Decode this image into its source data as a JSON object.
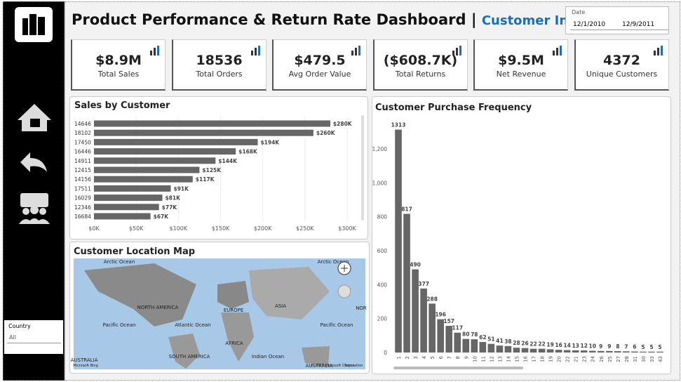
{
  "header": {
    "title": "Product Performance & Return Rate Dashboard",
    "separator": "|",
    "subtitle": "Customer Insights"
  },
  "date_slicer": {
    "label": "Date",
    "start": "12/1/2010",
    "end": "12/9/2011"
  },
  "kpis": [
    {
      "value": "$8.9M",
      "label": "Total Sales"
    },
    {
      "value": "18536",
      "label": "Total Orders"
    },
    {
      "value": "$479.5",
      "label": "Avg Order Value"
    },
    {
      "value": "($608.7K)",
      "label": "Total Returns"
    },
    {
      "value": "$9.5M",
      "label": "Net Revenue"
    },
    {
      "value": "4372",
      "label": "Unique Customers"
    }
  ],
  "country_slicer": {
    "label": "Country",
    "value": "All"
  },
  "map": {
    "title": "Customer Location Map",
    "labels": [
      "Arctic Ocean",
      "Arctic Ocean",
      "NORTH AMERICA",
      "EUROPE",
      "ASIA",
      "NOR",
      "Pacific Ocean",
      "Atlantic Ocean",
      "Pacific Ocean",
      "AFRICA",
      "SOUTH AMERICA",
      "Indian Ocean",
      "AUSTRALIA",
      "AUSTRALIA",
      "Microsoft Bing",
      "© 2025 Microsoft Corporation",
      "Terms"
    ]
  },
  "chart_data": [
    {
      "type": "hbar",
      "title": "Sales by Customer",
      "color": "#666666",
      "categories": [
        "14646",
        "18102",
        "17450",
        "16446",
        "14911",
        "12415",
        "14156",
        "17511",
        "16029",
        "12346",
        "16684"
      ],
      "values": [
        280000,
        260000,
        194000,
        168000,
        144000,
        125000,
        117000,
        91000,
        81000,
        77000,
        67000
      ],
      "value_labels": [
        "$280K",
        "$260K",
        "$194K",
        "$168K",
        "$144K",
        "$125K",
        "$117K",
        "$91K",
        "$81K",
        "$77K",
        "$67K"
      ],
      "xlim": [
        0,
        315000
      ],
      "xticks": [
        {
          "value": 0,
          "label": "$0K"
        },
        {
          "value": 50000,
          "label": "$50K"
        },
        {
          "value": 100000,
          "label": "$100K"
        },
        {
          "value": 150000,
          "label": "$150K"
        },
        {
          "value": 200000,
          "label": "$200K"
        },
        {
          "value": 250000,
          "label": "$250K"
        },
        {
          "value": 300000,
          "label": "$300K"
        }
      ],
      "grid": true
    },
    {
      "type": "bar",
      "title": "Customer Purchase Frequency",
      "color": "#666666",
      "categories": [
        "1",
        "2",
        "3",
        "4",
        "5",
        "6",
        "7",
        "8",
        "9",
        "10",
        "11",
        "12",
        "13",
        "14",
        "15",
        "16",
        "17",
        "18",
        "19",
        "20",
        "22",
        "21",
        "23",
        "24",
        "26",
        "25",
        "27",
        "28",
        "31",
        "30",
        "33",
        "43"
      ],
      "values": [
        1313,
        817,
        490,
        377,
        288,
        196,
        157,
        117,
        80,
        78,
        62,
        51,
        41,
        38,
        28,
        26,
        22,
        22,
        19,
        16,
        14,
        13,
        12,
        10,
        9,
        9,
        8,
        7,
        6,
        5,
        5,
        5
      ],
      "ylim": [
        0,
        1390
      ],
      "yticks": [
        0,
        200,
        400,
        600,
        800,
        {
          "value": 1000,
          "label": "1,000"
        },
        {
          "value": 1200,
          "label": "1,200"
        }
      ],
      "grid": false
    }
  ]
}
